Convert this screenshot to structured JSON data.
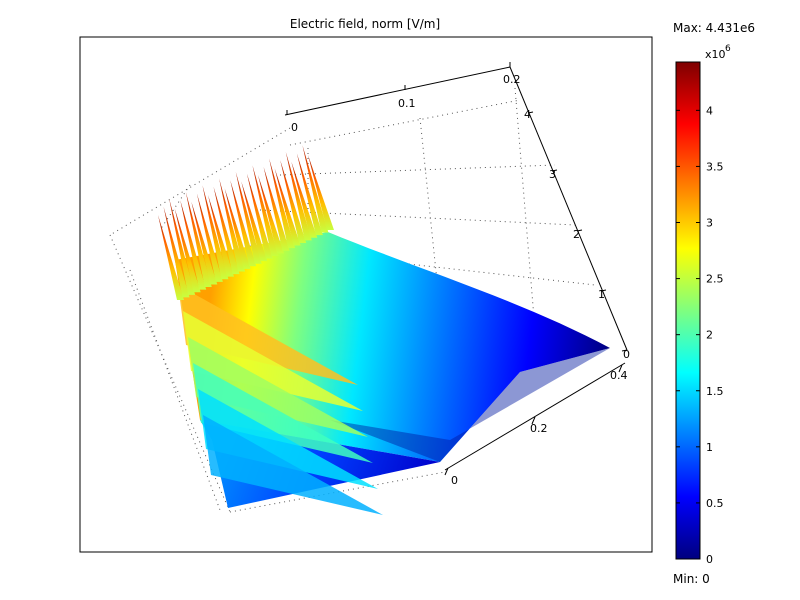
{
  "chart_data": {
    "type": "surface",
    "title": "Electric field, norm [V/m]",
    "colorbar": {
      "max_label": "Max: 4.431e6",
      "min_label": "Min: 0",
      "exponent_base": "x10",
      "exponent": "6",
      "ticks": [
        "0",
        "0.5",
        "1",
        "1.5",
        "2",
        "2.5",
        "3",
        "3.5",
        "4"
      ],
      "tick_values": [
        0,
        0.5,
        1,
        1.5,
        2,
        2.5,
        3,
        3.5,
        4
      ],
      "range": [
        0,
        4.431
      ],
      "colormap": "jet"
    },
    "axes": {
      "x_ticks": [
        "0",
        "0.1",
        "0.2"
      ],
      "y_ticks": [
        "0",
        "0.2",
        "0.4"
      ],
      "z_ticks": [
        "0",
        "1",
        "2",
        "3",
        "4"
      ]
    },
    "field_max": 4431000.0,
    "field_min": 0,
    "spike_count": 28
  },
  "colors": {
    "jet": [
      "#00007f",
      "#0000ff",
      "#007fff",
      "#00ffff",
      "#7fff7f",
      "#ffff00",
      "#ff7f00",
      "#ff0000",
      "#7f0000"
    ],
    "frame": "#000000",
    "grid": "#555555"
  }
}
